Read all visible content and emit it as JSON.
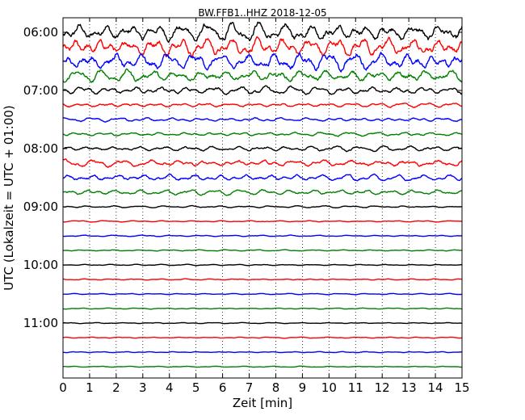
{
  "chart_data": {
    "type": "line",
    "title": "BW.FFB1..HHZ 2018-12-05",
    "xlabel": "Zeit  [min]",
    "ylabel": "UTC (Lokalzeit = UTC + 01:00)",
    "xlim": [
      0,
      15
    ],
    "x_ticks": [
      "0",
      "1",
      "2",
      "3",
      "4",
      "5",
      "6",
      "7",
      "8",
      "9",
      "10",
      "11",
      "12",
      "13",
      "14",
      "15"
    ],
    "y_ticks": [
      "06:00",
      "07:00",
      "08:00",
      "09:00",
      "10:00",
      "11:00"
    ],
    "grid": "vertical dotted at each minute",
    "trace_interval_min": 15,
    "start_time": "06:00",
    "colors": [
      "#000000",
      "#ff0000",
      "#0000ff",
      "#008000"
    ],
    "traces": [
      {
        "start": "06:00",
        "color": "#000000",
        "amplitude": 1.0
      },
      {
        "start": "06:15",
        "color": "#ff0000",
        "amplitude": 1.0
      },
      {
        "start": "06:30",
        "color": "#0000ff",
        "amplitude": 0.95
      },
      {
        "start": "06:45",
        "color": "#008000",
        "amplitude": 0.7
      },
      {
        "start": "07:00",
        "color": "#000000",
        "amplitude": 0.45
      },
      {
        "start": "07:15",
        "color": "#ff0000",
        "amplitude": 0.25
      },
      {
        "start": "07:30",
        "color": "#0000ff",
        "amplitude": 0.22
      },
      {
        "start": "07:45",
        "color": "#008000",
        "amplitude": 0.22
      },
      {
        "start": "08:00",
        "color": "#000000",
        "amplitude": 0.3
      },
      {
        "start": "08:15",
        "color": "#ff0000",
        "amplitude": 0.4
      },
      {
        "start": "08:30",
        "color": "#0000ff",
        "amplitude": 0.38
      },
      {
        "start": "08:45",
        "color": "#008000",
        "amplitude": 0.3
      },
      {
        "start": "09:00",
        "color": "#000000",
        "amplitude": 0.12
      },
      {
        "start": "09:15",
        "color": "#ff0000",
        "amplitude": 0.08
      },
      {
        "start": "09:30",
        "color": "#0000ff",
        "amplitude": 0.08
      },
      {
        "start": "09:45",
        "color": "#008000",
        "amplitude": 0.08
      },
      {
        "start": "10:00",
        "color": "#000000",
        "amplitude": 0.07
      },
      {
        "start": "10:15",
        "color": "#ff0000",
        "amplitude": 0.07
      },
      {
        "start": "10:30",
        "color": "#0000ff",
        "amplitude": 0.07
      },
      {
        "start": "10:45",
        "color": "#008000",
        "amplitude": 0.07
      },
      {
        "start": "11:00",
        "color": "#000000",
        "amplitude": 0.06
      },
      {
        "start": "11:15",
        "color": "#ff0000",
        "amplitude": 0.06
      },
      {
        "start": "11:30",
        "color": "#0000ff",
        "amplitude": 0.06
      },
      {
        "start": "11:45",
        "color": "#008000",
        "amplitude": 0.06
      }
    ]
  }
}
